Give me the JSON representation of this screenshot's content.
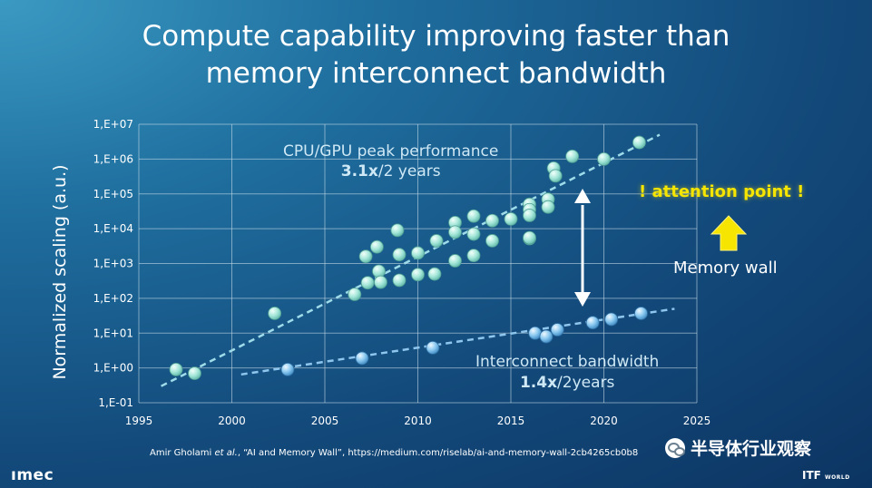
{
  "slide": {
    "title_line1": "Compute capability improving faster than",
    "title_line2": "memory interconnect bandwidth",
    "annotation_cpu_line1": "CPU/GPU peak performance",
    "annotation_cpu_rate": "3.1x",
    "annotation_cpu_rest": "/2 years",
    "annotation_ic_line1": "Interconnect bandwidth",
    "annotation_ic_rate": "1.4x",
    "annotation_ic_rest": "/2years",
    "attention": "! attention point !",
    "memory_wall": "Memory wall",
    "citation_author": "Amir Gholami ",
    "citation_etal": "et al.",
    "citation_rest": ", “AI and Memory Wall”, https://medium.com/riselab/ai-and-memory-wall-2cb4265cb0b8",
    "logo": "ımec",
    "itf": "ITF",
    "itf_small": "WORLD",
    "watermark": "半导体行业观察",
    "colors": {
      "cpu_points": "#9ee3d6",
      "ic_points": "#7fc0ec",
      "attention": "#f5e500",
      "arrow_yellow": "#f5e500"
    }
  },
  "chart_data": {
    "type": "scatter",
    "title": "",
    "xlabel": "",
    "ylabel": "Normalized scaling (a.u.)",
    "xlim": [
      1995,
      2025
    ],
    "ylim": [
      0.1,
      10000000
    ],
    "yscale": "log",
    "grid": true,
    "x_ticks": [
      "1995",
      "2000",
      "2005",
      "2010",
      "2015",
      "2020",
      "2025"
    ],
    "y_ticks": [
      "1,E-01",
      "1,E+00",
      "1,E+01",
      "1,E+02",
      "1,E+03",
      "1,E+04",
      "1,E+05",
      "1,E+06",
      "1,E+07"
    ],
    "series": [
      {
        "x": [
          1997,
          1998,
          2002.3,
          2006.6,
          2007.2,
          2007.3,
          2007.8,
          2007.9,
          2008,
          2008.9,
          2009,
          2009,
          2010,
          2010,
          2010.9,
          2011,
          2012,
          2012,
          2012,
          2013,
          2013,
          2013,
          2014,
          2014,
          2015,
          2016,
          2016,
          2016,
          2016,
          2016,
          2017,
          2017,
          2017.3,
          2017.4,
          2018.3,
          2020,
          2021.9
        ],
        "y": [
          0.9,
          0.7,
          37,
          130,
          1600,
          280,
          3000,
          600,
          290,
          9000,
          1800,
          330,
          2000,
          480,
          500,
          4500,
          15000,
          8000,
          1200,
          23000,
          7000,
          1700,
          17000,
          4500,
          19000,
          50000,
          35000,
          24000,
          5200,
          5500,
          70000,
          42000,
          550000,
          330000,
          1200000,
          1000000,
          3000000
        ]
      },
      {
        "x": [
          2003,
          2007,
          2010.8,
          2016.3,
          2016.9,
          2017.5,
          2019.4,
          2020.4,
          2022
        ],
        "y": [
          0.9,
          1.9,
          3.8,
          10,
          8,
          12.5,
          20,
          25,
          37
        ]
      }
    ],
    "trendlines": [
      {
        "x": [
          1996.2,
          2023
        ],
        "y": [
          0.3,
          5000000
        ]
      },
      {
        "x": [
          2000.5,
          2023.8
        ],
        "y": [
          0.65,
          50
        ]
      }
    ]
  }
}
